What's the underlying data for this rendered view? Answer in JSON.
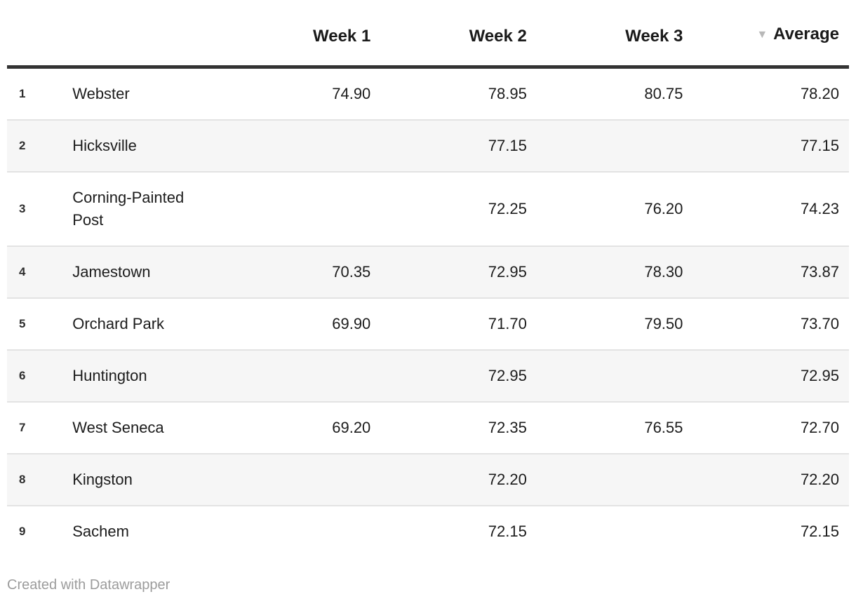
{
  "chart_data": {
    "type": "table",
    "title": "",
    "columns": [
      {
        "id": "rank",
        "label": ""
      },
      {
        "id": "name",
        "label": ""
      },
      {
        "id": "week1",
        "label": "Week 1"
      },
      {
        "id": "week2",
        "label": "Week 2"
      },
      {
        "id": "week3",
        "label": "Week 3"
      },
      {
        "id": "average",
        "label": "Average"
      }
    ],
    "sort": {
      "column": "Average",
      "order": "descending",
      "indicator": "▼"
    },
    "rows": [
      {
        "rank": "1",
        "name": "Webster",
        "week1": "74.90",
        "week2": "78.95",
        "week3": "80.75",
        "average": "78.20"
      },
      {
        "rank": "2",
        "name": "Hicksville",
        "week1": "",
        "week2": "77.15",
        "week3": "",
        "average": "77.15"
      },
      {
        "rank": "3",
        "name": "Corning-Painted Post",
        "week1": "",
        "week2": "72.25",
        "week3": "76.20",
        "average": "74.23"
      },
      {
        "rank": "4",
        "name": "Jamestown",
        "week1": "70.35",
        "week2": "72.95",
        "week3": "78.30",
        "average": "73.87"
      },
      {
        "rank": "5",
        "name": "Orchard Park",
        "week1": "69.90",
        "week2": "71.70",
        "week3": "79.50",
        "average": "73.70"
      },
      {
        "rank": "6",
        "name": "Huntington",
        "week1": "",
        "week2": "72.95",
        "week3": "",
        "average": "72.95"
      },
      {
        "rank": "7",
        "name": "West Seneca",
        "week1": "69.20",
        "week2": "72.35",
        "week3": "76.55",
        "average": "72.70"
      },
      {
        "rank": "8",
        "name": "Kingston",
        "week1": "",
        "week2": "72.20",
        "week3": "",
        "average": "72.20"
      },
      {
        "rank": "9",
        "name": "Sachem",
        "week1": "",
        "week2": "72.15",
        "week3": "",
        "average": "72.15"
      }
    ]
  },
  "footer": {
    "credit": "Created with Datawrapper"
  },
  "colors": {
    "header_rule": "#333333",
    "row_divider": "#e3e3e3",
    "zebra_stripe": "#f6f6f6",
    "text": "#1c1c1c",
    "sort_icon": "#b8b8b8",
    "credit_text": "#9c9c9c"
  }
}
